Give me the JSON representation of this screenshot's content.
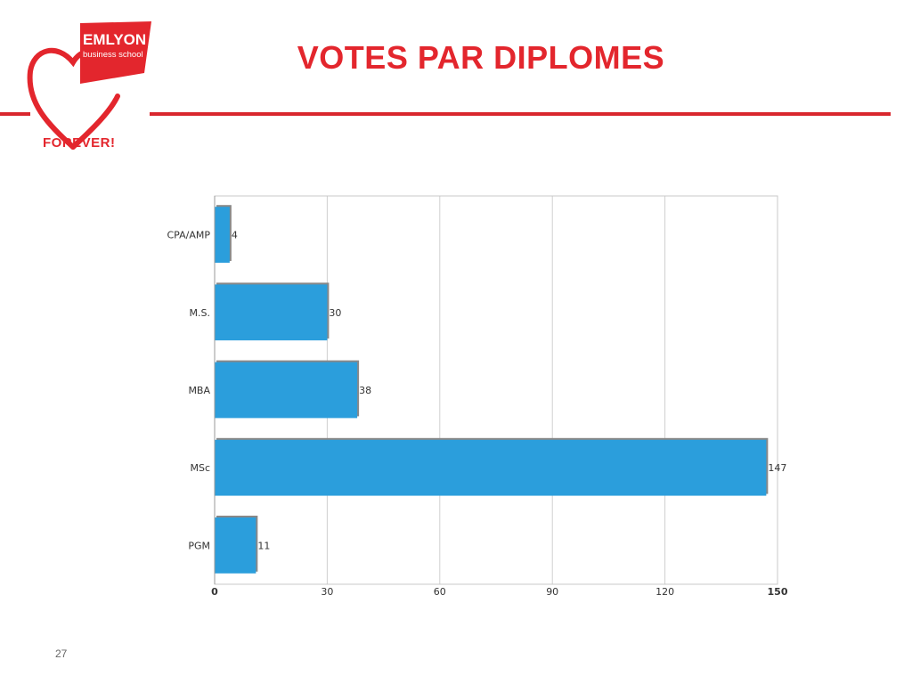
{
  "slide": {
    "title": "VOTES PAR DIPLOMES",
    "page_number": "27",
    "accent_color": "#e3262d"
  },
  "logo": {
    "brand": "EMLYON",
    "tagline": "business school",
    "motto": "FOREVER!",
    "icon": "heart-icon"
  },
  "chart_data": {
    "type": "bar",
    "orientation": "horizontal",
    "categories": [
      "CPA/AMP",
      "M.S.",
      "MBA",
      "MSc",
      "PGM"
    ],
    "values": [
      4,
      30,
      38,
      147,
      11
    ],
    "data_labels": [
      "4",
      "30",
      "38",
      "147",
      "11"
    ],
    "xlim": [
      0,
      150
    ],
    "x_ticks": [
      0,
      30,
      60,
      90,
      120,
      150
    ],
    "x_tick_labels": [
      "0",
      "30",
      "60",
      "90",
      "120",
      "150"
    ],
    "grid": true,
    "legend": "none",
    "bar_color": "#2b9edc",
    "bar_shadow_color": "#888888"
  }
}
